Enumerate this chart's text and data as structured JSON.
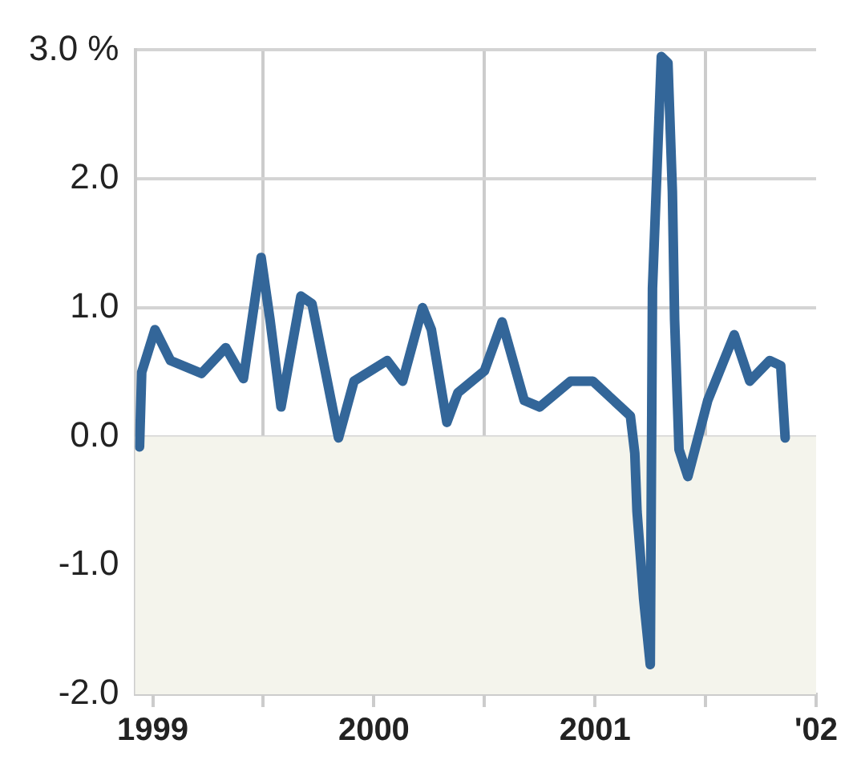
{
  "chart_data": {
    "type": "line",
    "x": [
      1998.94,
      1998.95,
      1999.01,
      1999.08,
      1999.22,
      1999.33,
      1999.41,
      1999.49,
      1999.53,
      1999.58,
      1999.67,
      1999.72,
      1999.84,
      1999.91,
      2000.06,
      2000.13,
      2000.22,
      2000.26,
      2000.33,
      2000.38,
      2000.5,
      2000.58,
      2000.68,
      2000.75,
      2000.89,
      2000.99,
      2001.16,
      2001.18,
      2001.19,
      2001.22,
      2001.25,
      2001.26,
      2001.3,
      2001.33,
      2001.35,
      2001.36,
      2001.38,
      2001.42,
      2001.51,
      2001.63,
      2001.7,
      2001.79,
      2001.84,
      2001.86
    ],
    "series": [
      {
        "color": "#336699",
        "values": [
          -0.08,
          0.5,
          0.83,
          0.59,
          0.49,
          0.69,
          0.45,
          1.39,
          0.91,
          0.23,
          1.09,
          1.03,
          -0.01,
          0.43,
          0.59,
          0.43,
          1.0,
          0.83,
          0.11,
          0.34,
          0.51,
          0.89,
          0.28,
          0.23,
          0.43,
          0.43,
          0.16,
          -0.13,
          -0.58,
          -1.26,
          -1.77,
          1.15,
          2.95,
          2.9,
          1.9,
          0.91,
          -0.1,
          -0.31,
          0.28,
          0.79,
          0.43,
          0.59,
          0.55,
          -0.01
        ]
      }
    ],
    "xlim": [
      1998.92,
      2002
    ],
    "xticks": [
      {
        "value": 1999,
        "label": "1999"
      },
      {
        "value": 1999.5,
        "label": null
      },
      {
        "value": 2000,
        "label": "2000"
      },
      {
        "value": 2000.5,
        "label": null
      },
      {
        "value": 2001,
        "label": "2001"
      },
      {
        "value": 2001.5,
        "label": null
      },
      {
        "value": 2002,
        "label": "'02"
      }
    ],
    "ylim": [
      -2,
      3
    ],
    "yticks": [
      {
        "value": -2,
        "label": "-2.0"
      },
      {
        "value": -1,
        "label": "-1.0"
      },
      {
        "value": 0,
        "label": "0.0"
      },
      {
        "value": 1,
        "label": "1.0"
      },
      {
        "value": 2,
        "label": "2.0"
      },
      {
        "value": 3,
        "label": "3.0 %"
      }
    ],
    "bands": [
      {
        "axis": "y",
        "from": -2,
        "to": 0,
        "color": "#f4f4ec"
      }
    ],
    "grid": true,
    "legend": false,
    "marker": "none",
    "line_style": "solid"
  }
}
